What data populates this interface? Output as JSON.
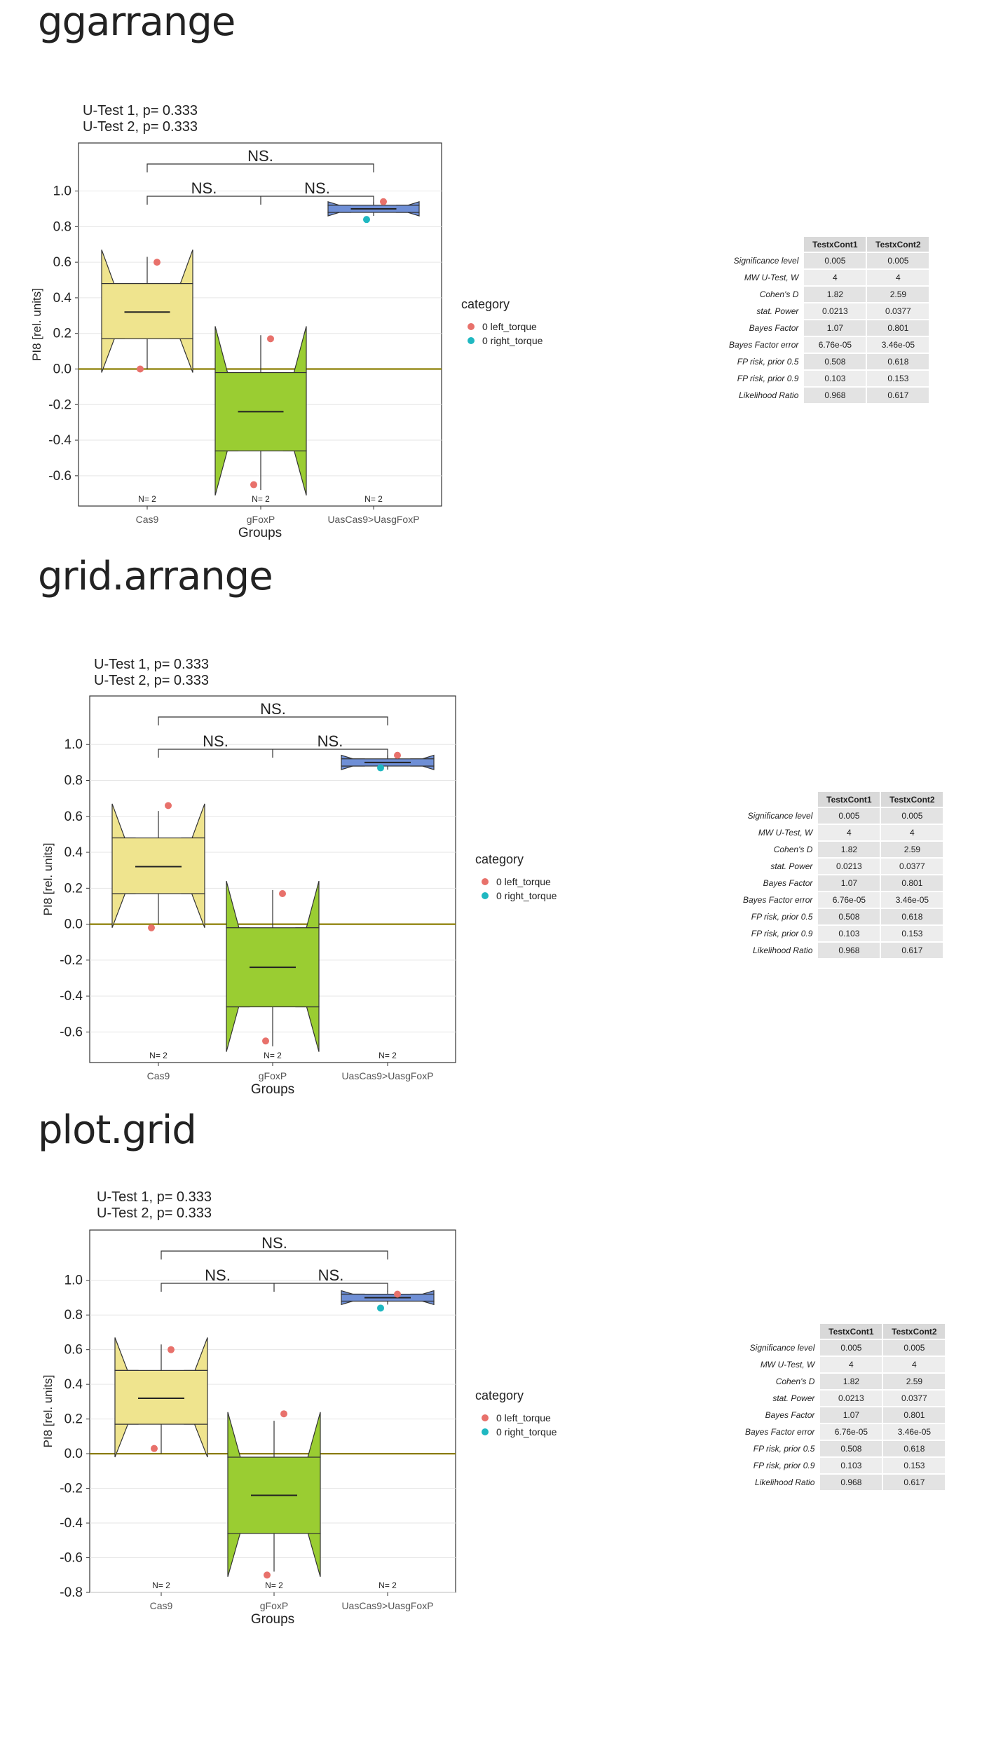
{
  "panels": [
    {
      "title": "ggarrange",
      "test_lines": [
        "U-Test 1, p= 0.333",
        "U-Test 2, p= 0.333"
      ]
    },
    {
      "title": "grid.arrange",
      "test_lines": [
        "U-Test 1, p= 0.333",
        "U-Test 2, p= 0.333"
      ]
    },
    {
      "title": "plot.grid",
      "test_lines": [
        "U-Test 1, p= 0.333",
        "U-Test 2, p= 0.333"
      ]
    }
  ],
  "colors": {
    "cas9_box": "#efe48e",
    "gfoxp_box": "#9acd32",
    "uas_box": "#6f8fd6",
    "left_torque": "#e8716b",
    "right_torque": "#1fb8c1",
    "zero_line": "#8b7d00"
  },
  "stats_table": {
    "columns": [
      "TestxCont1",
      "TestxCont2"
    ],
    "rows": [
      {
        "label": "Significance level",
        "values": [
          "0.005",
          "0.005"
        ]
      },
      {
        "label": "MW U-Test, W",
        "values": [
          "4",
          "4"
        ]
      },
      {
        "label": "Cohen's D",
        "values": [
          "1.82",
          "2.59"
        ]
      },
      {
        "label": "stat. Power",
        "values": [
          "0.0213",
          "0.0377"
        ]
      },
      {
        "label": "Bayes Factor",
        "values": [
          "1.07",
          "0.801"
        ]
      },
      {
        "label": "Bayes Factor error",
        "values": [
          "6.76e-05",
          "3.46e-05"
        ]
      },
      {
        "label": "FP risk, prior  0.5",
        "values": [
          "0.508",
          "0.618"
        ]
      },
      {
        "label": "FP risk, prior  0.9",
        "values": [
          "0.103",
          "0.153"
        ]
      },
      {
        "label": "Likelihood Ratio",
        "values": [
          "0.968",
          "0.617"
        ]
      }
    ]
  },
  "chart_data": [
    {
      "type": "boxplot",
      "title": "U-Test 1, p= 0.333 / U-Test 2, p= 0.333",
      "xlabel": "Groups",
      "ylabel": "PI8 [rel. units]",
      "categories": [
        "Cas9",
        "gFoxP",
        "UasCas9>UasgFoxP"
      ],
      "yticks": [
        "1.0",
        "0.8",
        "0.6",
        "0.4",
        "0.2",
        "0.0",
        "-0.2",
        "-0.4",
        "-0.6"
      ],
      "yticks_v": [
        1.0,
        0.8,
        0.6,
        0.4,
        0.2,
        0.0,
        -0.2,
        -0.4,
        -0.6
      ],
      "ylim": [
        -0.77,
        1.27
      ],
      "n_labels": [
        "N= 2",
        "N= 2",
        "N= 2"
      ],
      "boxes": [
        {
          "group": "Cas9",
          "min": 0.0,
          "q1": 0.17,
          "median": 0.32,
          "q3": 0.48,
          "max": 0.63,
          "notch_low": -0.02,
          "notch_high": 0.67
        },
        {
          "group": "gFoxP",
          "min": -0.68,
          "q1": -0.46,
          "median": -0.24,
          "q3": -0.02,
          "max": 0.19,
          "notch_low": -0.71,
          "notch_high": 0.24
        },
        {
          "group": "UasCas9>UasgFoxP",
          "min": 0.86,
          "q1": 0.88,
          "median": 0.9,
          "q3": 0.92,
          "max": 0.94,
          "notch_low": 0.86,
          "notch_high": 0.94
        }
      ],
      "points": [
        {
          "group": "Cas9",
          "y": 0.6,
          "category": "0 left_torque"
        },
        {
          "group": "Cas9",
          "y": 0.0,
          "category": "0 left_torque"
        },
        {
          "group": "gFoxP",
          "y": 0.17,
          "category": "0 left_torque"
        },
        {
          "group": "gFoxP",
          "y": -0.65,
          "category": "0 left_torque"
        },
        {
          "group": "UasCas9>UasgFoxP",
          "y": 0.94,
          "category": "0 left_torque"
        },
        {
          "group": "UasCas9>UasgFoxP",
          "y": 0.84,
          "category": "0 right_torque"
        }
      ],
      "significance": [
        "NS.",
        "NS.",
        "NS."
      ],
      "legend_title": "category",
      "legend": [
        "0 left_torque",
        "0 right_torque"
      ]
    },
    {
      "type": "boxplot",
      "title": "U-Test 1, p= 0.333 / U-Test 2, p= 0.333",
      "xlabel": "Groups",
      "ylabel": "PI8 [rel. units]",
      "categories": [
        "Cas9",
        "gFoxP",
        "UasCas9>UasgFoxP"
      ],
      "yticks": [
        "1.0",
        "0.8",
        "0.6",
        "0.4",
        "0.2",
        "0.0",
        "-0.2",
        "-0.4",
        "-0.6"
      ],
      "yticks_v": [
        1.0,
        0.8,
        0.6,
        0.4,
        0.2,
        0.0,
        -0.2,
        -0.4,
        -0.6
      ],
      "ylim": [
        -0.77,
        1.27
      ],
      "n_labels": [
        "N= 2",
        "N= 2",
        "N= 2"
      ],
      "boxes": [
        {
          "group": "Cas9",
          "min": 0.0,
          "q1": 0.17,
          "median": 0.32,
          "q3": 0.48,
          "max": 0.63,
          "notch_low": -0.02,
          "notch_high": 0.67
        },
        {
          "group": "gFoxP",
          "min": -0.68,
          "q1": -0.46,
          "median": -0.24,
          "q3": -0.02,
          "max": 0.19,
          "notch_low": -0.71,
          "notch_high": 0.24
        },
        {
          "group": "UasCas9>UasgFoxP",
          "min": 0.86,
          "q1": 0.88,
          "median": 0.9,
          "q3": 0.92,
          "max": 0.94,
          "notch_low": 0.86,
          "notch_high": 0.94
        }
      ],
      "points": [
        {
          "group": "Cas9",
          "y": 0.66,
          "category": "0 left_torque"
        },
        {
          "group": "Cas9",
          "y": -0.02,
          "category": "0 left_torque"
        },
        {
          "group": "gFoxP",
          "y": 0.17,
          "category": "0 left_torque"
        },
        {
          "group": "gFoxP",
          "y": -0.65,
          "category": "0 left_torque"
        },
        {
          "group": "UasCas9>UasgFoxP",
          "y": 0.94,
          "category": "0 left_torque"
        },
        {
          "group": "UasCas9>UasgFoxP",
          "y": 0.87,
          "category": "0 right_torque"
        }
      ],
      "significance": [
        "NS.",
        "NS.",
        "NS."
      ],
      "legend_title": "category",
      "legend": [
        "0 left_torque",
        "0 right_torque"
      ]
    },
    {
      "type": "boxplot",
      "title": "U-Test 1, p= 0.333 / U-Test 2, p= 0.333",
      "xlabel": "Groups",
      "ylabel": "PI8 [rel. units]",
      "categories": [
        "Cas9",
        "gFoxP",
        "UasCas9>UasgFoxP"
      ],
      "yticks": [
        "1.0",
        "0.8",
        "0.6",
        "0.4",
        "0.2",
        "0.0",
        "-0.2",
        "-0.4",
        "-0.6",
        "-0.8"
      ],
      "yticks_v": [
        1.0,
        0.8,
        0.6,
        0.4,
        0.2,
        0.0,
        -0.2,
        -0.4,
        -0.6,
        -0.8
      ],
      "ylim": [
        -0.8,
        1.29
      ],
      "n_labels": [
        "N= 2",
        "N= 2",
        "N= 2"
      ],
      "boxes": [
        {
          "group": "Cas9",
          "min": 0.0,
          "q1": 0.17,
          "median": 0.32,
          "q3": 0.48,
          "max": 0.63,
          "notch_low": -0.02,
          "notch_high": 0.67
        },
        {
          "group": "gFoxP",
          "min": -0.68,
          "q1": -0.46,
          "median": -0.24,
          "q3": -0.02,
          "max": 0.19,
          "notch_low": -0.71,
          "notch_high": 0.24
        },
        {
          "group": "UasCas9>UasgFoxP",
          "min": 0.86,
          "q1": 0.88,
          "median": 0.9,
          "q3": 0.92,
          "max": 0.94,
          "notch_low": 0.86,
          "notch_high": 0.94
        }
      ],
      "points": [
        {
          "group": "Cas9",
          "y": 0.6,
          "category": "0 left_torque"
        },
        {
          "group": "Cas9",
          "y": 0.03,
          "category": "0 left_torque"
        },
        {
          "group": "gFoxP",
          "y": 0.23,
          "category": "0 left_torque"
        },
        {
          "group": "gFoxP",
          "y": -0.7,
          "category": "0 left_torque"
        },
        {
          "group": "UasCas9>UasgFoxP",
          "y": 0.92,
          "category": "0 left_torque"
        },
        {
          "group": "UasCas9>UasgFoxP",
          "y": 0.84,
          "category": "0 right_torque"
        }
      ],
      "significance": [
        "NS.",
        "NS.",
        "NS."
      ],
      "legend_title": "category",
      "legend": [
        "0 left_torque",
        "0 right_torque"
      ]
    }
  ]
}
